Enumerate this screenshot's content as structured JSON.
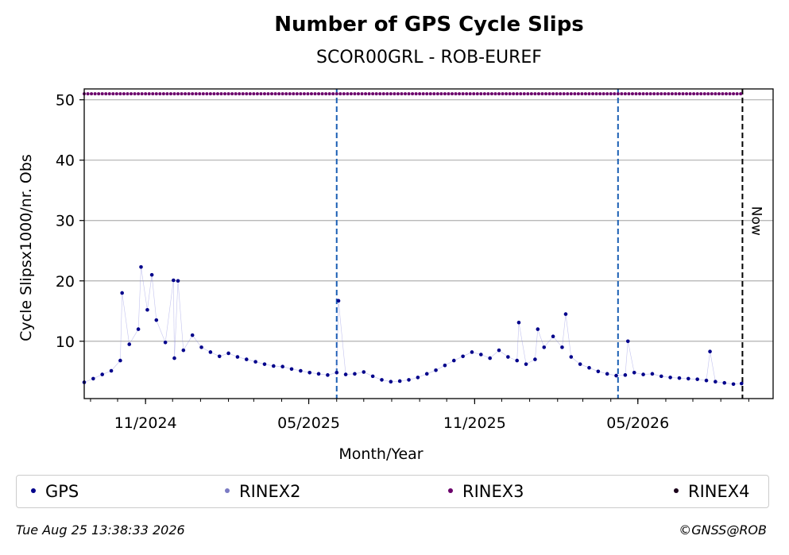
{
  "chart_data": {
    "type": "scatter",
    "title": "Number of GPS Cycle Slips",
    "subtitle": "SCOR00GRL - ROB-EUREF",
    "xlabel": "Month/Year",
    "ylabel": "Cycle Slipsx1000/nr. Obs",
    "x_ticks": [
      "11/2024",
      "05/2025",
      "11/2025",
      "05/2026"
    ],
    "y_ticks": [
      10,
      20,
      30,
      40,
      50
    ],
    "xlim": [
      "2024-08-25",
      "2026-09-28"
    ],
    "ylim": [
      0.5,
      51.8
    ],
    "grid": "horizontal",
    "legend_placement": "bottom",
    "vertical_lines": [
      {
        "date": "2025-06-01",
        "style": "dashed",
        "color": "#1a5fb4"
      },
      {
        "date": "2026-04-09",
        "style": "dashed",
        "color": "#1a5fb4"
      },
      {
        "date": "2026-08-25",
        "style": "dashed",
        "color": "#000000",
        "label": "Now"
      }
    ],
    "series": [
      {
        "name": "GPS",
        "color": "#00008b",
        "x": [
          "2024-08-25",
          "2024-09-04",
          "2024-09-14",
          "2024-09-24",
          "2024-10-04",
          "2024-10-14",
          "2024-10-24",
          "2024-11-03",
          "2024-11-13",
          "2024-11-23",
          "2024-12-03",
          "2024-12-13",
          "2024-12-23",
          "2025-01-02",
          "2025-01-12",
          "2025-01-22",
          "2025-02-01",
          "2025-02-11",
          "2025-02-21",
          "2025-03-03",
          "2025-03-13",
          "2025-03-23",
          "2025-04-02",
          "2025-04-12",
          "2025-04-22",
          "2025-05-02",
          "2025-05-12",
          "2025-05-22",
          "2025-06-01",
          "2025-06-11",
          "2025-06-21",
          "2025-07-01",
          "2025-07-11",
          "2025-07-21",
          "2025-07-31",
          "2025-08-10",
          "2025-08-20",
          "2025-08-30",
          "2025-09-09",
          "2025-09-19",
          "2025-09-29",
          "2025-10-09",
          "2025-10-19",
          "2025-10-29",
          "2025-11-08",
          "2025-11-18",
          "2025-11-28",
          "2025-12-08",
          "2025-12-18",
          "2025-12-28",
          "2026-01-07",
          "2026-01-17",
          "2026-01-27",
          "2026-02-06",
          "2026-02-16",
          "2026-02-26",
          "2026-03-08",
          "2026-03-18",
          "2026-03-28",
          "2026-04-07",
          "2026-04-17",
          "2026-04-27",
          "2026-05-07",
          "2026-05-17",
          "2026-05-27",
          "2026-06-06",
          "2026-06-16",
          "2026-06-26",
          "2026-07-06",
          "2026-07-16",
          "2026-07-26",
          "2026-08-05",
          "2026-08-15",
          "2026-08-24",
          "2024-10-06",
          "2024-10-27",
          "2024-11-08",
          "2024-12-02",
          "2024-12-07",
          "2025-06-03",
          "2025-12-20",
          "2026-01-10",
          "2026-02-10",
          "2026-04-20",
          "2026-07-20"
        ],
        "y": [
          3.2,
          3.8,
          4.5,
          5.1,
          6.8,
          9.5,
          12.0,
          15.2,
          13.5,
          9.8,
          7.2,
          8.5,
          11.0,
          9.0,
          8.2,
          7.5,
          8.0,
          7.4,
          7.0,
          6.6,
          6.2,
          5.9,
          5.8,
          5.4,
          5.1,
          4.8,
          4.6,
          4.4,
          4.8,
          4.5,
          4.6,
          4.9,
          4.2,
          3.6,
          3.3,
          3.4,
          3.6,
          4.0,
          4.6,
          5.2,
          6.0,
          6.8,
          7.5,
          8.2,
          7.8,
          7.2,
          8.5,
          7.4,
          6.8,
          6.2,
          7.0,
          9.0,
          10.8,
          9.0,
          7.4,
          6.2,
          5.6,
          5.0,
          4.6,
          4.3,
          4.4,
          4.8,
          4.5,
          4.6,
          4.2,
          4.0,
          3.9,
          3.8,
          3.7,
          3.5,
          3.3,
          3.1,
          2.9,
          3.0,
          18.0,
          22.3,
          21.0,
          20.1,
          20.0,
          16.7,
          13.1,
          12.0,
          14.5,
          10.0,
          8.3
        ]
      },
      {
        "name": "RINEX2",
        "color": "#7b7bc4",
        "x": [],
        "y": []
      },
      {
        "name": "RINEX3",
        "color": "#6b006b",
        "x_range": [
          "2024-08-25",
          "2026-08-24"
        ],
        "constant_y": 51
      },
      {
        "name": "RINEX4",
        "color": "#1a001a",
        "x": [],
        "y": []
      }
    ]
  },
  "legend": [
    {
      "label": "GPS",
      "color": "#00008b"
    },
    {
      "label": "RINEX2",
      "color": "#7b7bc4"
    },
    {
      "label": "RINEX3",
      "color": "#6b006b"
    },
    {
      "label": "RINEX4",
      "color": "#1a001a"
    }
  ],
  "footer": {
    "timestamp": "Tue Aug 25 13:38:33 2026",
    "copyright": "©GNSS@ROB"
  }
}
